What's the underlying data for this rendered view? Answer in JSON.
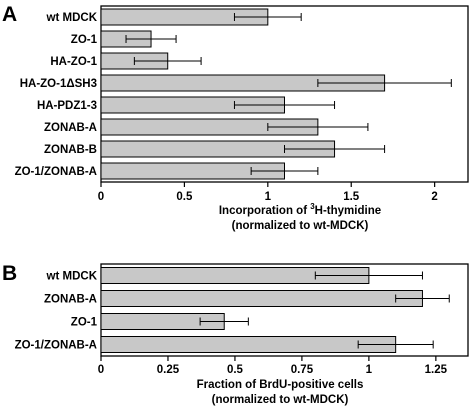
{
  "chart_data": [
    {
      "panel": "A",
      "type": "bar",
      "orientation": "horizontal",
      "categories": [
        "wt MDCK",
        "ZO-1",
        "HA-ZO-1",
        "HA-ZO-1ΔSH3",
        "HA-PDZ1-3",
        "ZONAB-A",
        "ZONAB-B",
        "ZO-1/ZONAB-A"
      ],
      "values": [
        1.0,
        0.3,
        0.4,
        1.7,
        1.1,
        1.3,
        1.4,
        1.1
      ],
      "errors": [
        0.2,
        0.15,
        0.2,
        0.4,
        0.3,
        0.3,
        0.3,
        0.2
      ],
      "xlim": [
        0,
        2.2
      ],
      "xticks": [
        0,
        0.5,
        1,
        1.5,
        2
      ],
      "xtick_labels": [
        "0",
        "0.5",
        "1",
        "1.5",
        "2"
      ],
      "xlabel_pre": "Incorporation of ",
      "xlabel_sup": "3",
      "xlabel_post": "H-thymidine",
      "xlabel_line2": "(normalized to wt-MDCK)",
      "bar_color": "#c8c8c8"
    },
    {
      "panel": "B",
      "type": "bar",
      "orientation": "horizontal",
      "categories": [
        "wt MDCK",
        "ZONAB-A",
        "ZO-1",
        "ZO-1/ZONAB-A"
      ],
      "values": [
        1.0,
        1.2,
        0.46,
        1.1
      ],
      "errors": [
        0.2,
        0.1,
        0.09,
        0.14
      ],
      "xlim": [
        0,
        1.37
      ],
      "xticks": [
        0,
        0.25,
        0.5,
        0.75,
        1,
        1.25
      ],
      "xtick_labels": [
        "0",
        "0.25",
        "0.5",
        "0.75",
        "1",
        "1.25"
      ],
      "xlabel": "Fraction of BrdU-positive cells",
      "xlabel_line2": "(normalized to wt-MDCK)",
      "bar_color": "#c8c8c8"
    }
  ]
}
